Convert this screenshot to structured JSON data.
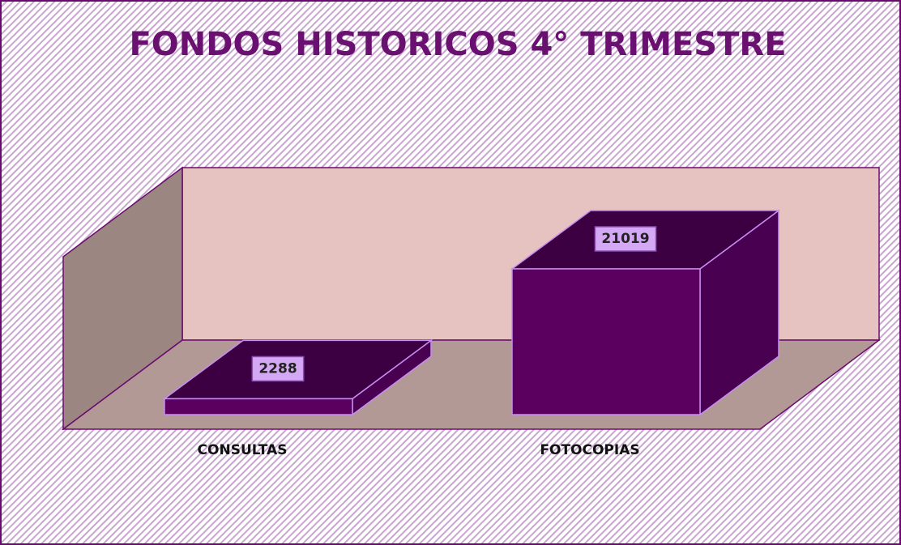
{
  "chart_data": {
    "type": "bar",
    "title": "FONDOS HISTORICOS 4° TRIMESTRE",
    "categories": [
      "CONSULTAS",
      "FOTOCOPIAS"
    ],
    "values": [
      2288,
      21019
    ],
    "color": "#5c005f"
  }
}
